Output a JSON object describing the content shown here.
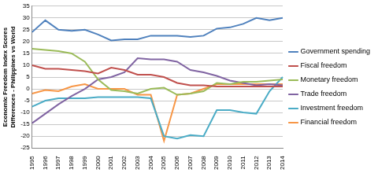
{
  "chart_data": {
    "type": "line",
    "y_label": [
      "Economic Freedom Index Scores",
      "Differences - Philippines vs World"
    ],
    "categories": [
      "1995",
      "1996",
      "1997",
      "1998",
      "1999",
      "2000",
      "2001",
      "2002",
      "2003",
      "2004",
      "2005",
      "2006",
      "2007",
      "2008",
      "2009",
      "2010",
      "2011",
      "2012",
      "2013",
      "2014"
    ],
    "series": [
      {
        "name": "Government spending",
        "color": "#4F81BD",
        "values": [
          24,
          29,
          25,
          24.5,
          25,
          23,
          20.5,
          21,
          21,
          22.5,
          22.5,
          22.5,
          22,
          22.5,
          25.5,
          26,
          27.5,
          30,
          29,
          30
        ]
      },
      {
        "name": "Fiscal freedom",
        "color": "#C0504D",
        "values": [
          10,
          8.5,
          8.5,
          8,
          7.5,
          6.5,
          9,
          8,
          6,
          6,
          5,
          2.5,
          1.5,
          1.5,
          1,
          1,
          1,
          1,
          1,
          1
        ]
      },
      {
        "name": "Monetary freedom",
        "color": "#9BBB59",
        "values": [
          17,
          16.5,
          16,
          15,
          11.5,
          4,
          -0.5,
          -1,
          -2,
          0,
          0.5,
          -2.5,
          -2,
          -1,
          2.5,
          2,
          3,
          3,
          3.5,
          4
        ]
      },
      {
        "name": "Trade freedom",
        "color": "#8064A2",
        "values": [
          -14.5,
          -10.5,
          -6.5,
          -3,
          0,
          4,
          5,
          7,
          13,
          12.5,
          12.5,
          11.5,
          8,
          7,
          5.5,
          3.5,
          2.5,
          1.5,
          2,
          1.5
        ]
      },
      {
        "name": "Investment freedom",
        "color": "#4BACC6",
        "values": [
          -7.5,
          -5,
          -4,
          -4,
          -4,
          -3.5,
          -3.5,
          -3.5,
          -3.5,
          -4,
          -20,
          -21,
          -19.5,
          -20,
          -9,
          -9,
          -10,
          -10.5,
          -1,
          5
        ]
      },
      {
        "name": "Financial freedom",
        "color": "#F79646",
        "values": [
          -2,
          -0.5,
          -1,
          1,
          2,
          0,
          0,
          0,
          -2.5,
          -2.5,
          -22,
          -2.5,
          -2,
          0,
          2,
          2,
          2,
          2,
          2,
          2
        ]
      }
    ],
    "ylim": [
      -25,
      35
    ],
    "yticks": [
      -25,
      -20,
      -15,
      -10,
      -5,
      0,
      5,
      10,
      15,
      20,
      25,
      30,
      35
    ],
    "grid": true,
    "legend": "right"
  }
}
